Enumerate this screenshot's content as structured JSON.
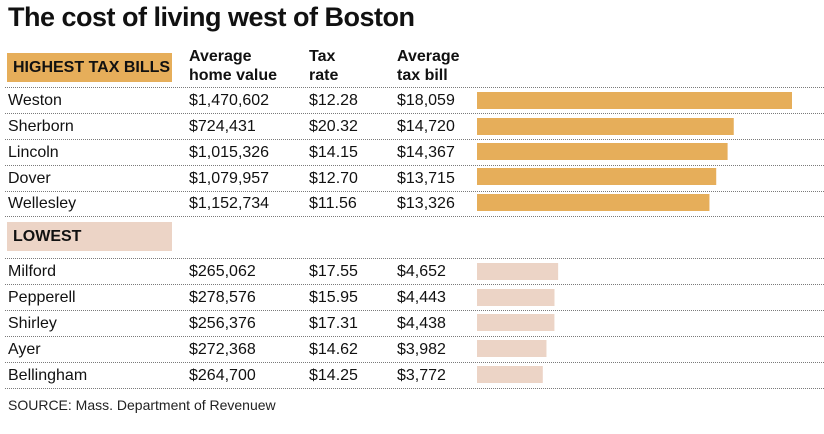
{
  "title": "The cost of living west of Boston",
  "high_label": "HIGHEST TAX BILLS",
  "low_label": "LOWEST",
  "col_headers": {
    "home_value": "Average\nhome value",
    "tax_rate": "Tax\nrate",
    "tax_bill": "Average\ntax bill"
  },
  "source": "SOURCE: Mass. Department of Revenuew",
  "colors": {
    "high": "#e6ae5a",
    "low": "#ecd4c6"
  },
  "chart_data": {
    "type": "bar",
    "categories": [
      "Weston",
      "Sherborn",
      "Lincoln",
      "Dover",
      "Wellesley",
      "Milford",
      "Pepperell",
      "Shirley",
      "Ayer",
      "Bellingham"
    ],
    "groups": [
      "high",
      "high",
      "high",
      "high",
      "high",
      "low",
      "low",
      "low",
      "low",
      "low"
    ],
    "values": [
      18059,
      14720,
      14367,
      13715,
      13326,
      4652,
      4443,
      4438,
      3982,
      3772
    ],
    "xlim": [
      0,
      18059
    ]
  },
  "table": {
    "high": [
      {
        "town": "Weston",
        "value": "$1,470,602",
        "rate": "$12.28",
        "bill": "$18,059"
      },
      {
        "town": "Sherborn",
        "value": "$724,431",
        "rate": "$20.32",
        "bill": "$14,720"
      },
      {
        "town": "Lincoln",
        "value": "$1,015,326",
        "rate": "$14.15",
        "bill": "$14,367"
      },
      {
        "town": "Dover",
        "value": "$1,079,957",
        "rate": "$12.70",
        "bill": "$13,715"
      },
      {
        "town": "Wellesley",
        "value": "$1,152,734",
        "rate": "$11.56",
        "bill": "$13,326"
      }
    ],
    "low": [
      {
        "town": "Milford",
        "value": "$265,062",
        "rate": "$17.55",
        "bill": "$4,652"
      },
      {
        "town": "Pepperell",
        "value": "$278,576",
        "rate": "$15.95",
        "bill": "$4,443"
      },
      {
        "town": "Shirley",
        "value": "$256,376",
        "rate": "$17.31",
        "bill": "$4,438"
      },
      {
        "town": "Ayer",
        "value": "$272,368",
        "rate": "$14.62",
        "bill": "$3,982"
      },
      {
        "town": "Bellingham",
        "value": "$264,700",
        "rate": "$14.25",
        "bill": "$3,772"
      }
    ]
  }
}
